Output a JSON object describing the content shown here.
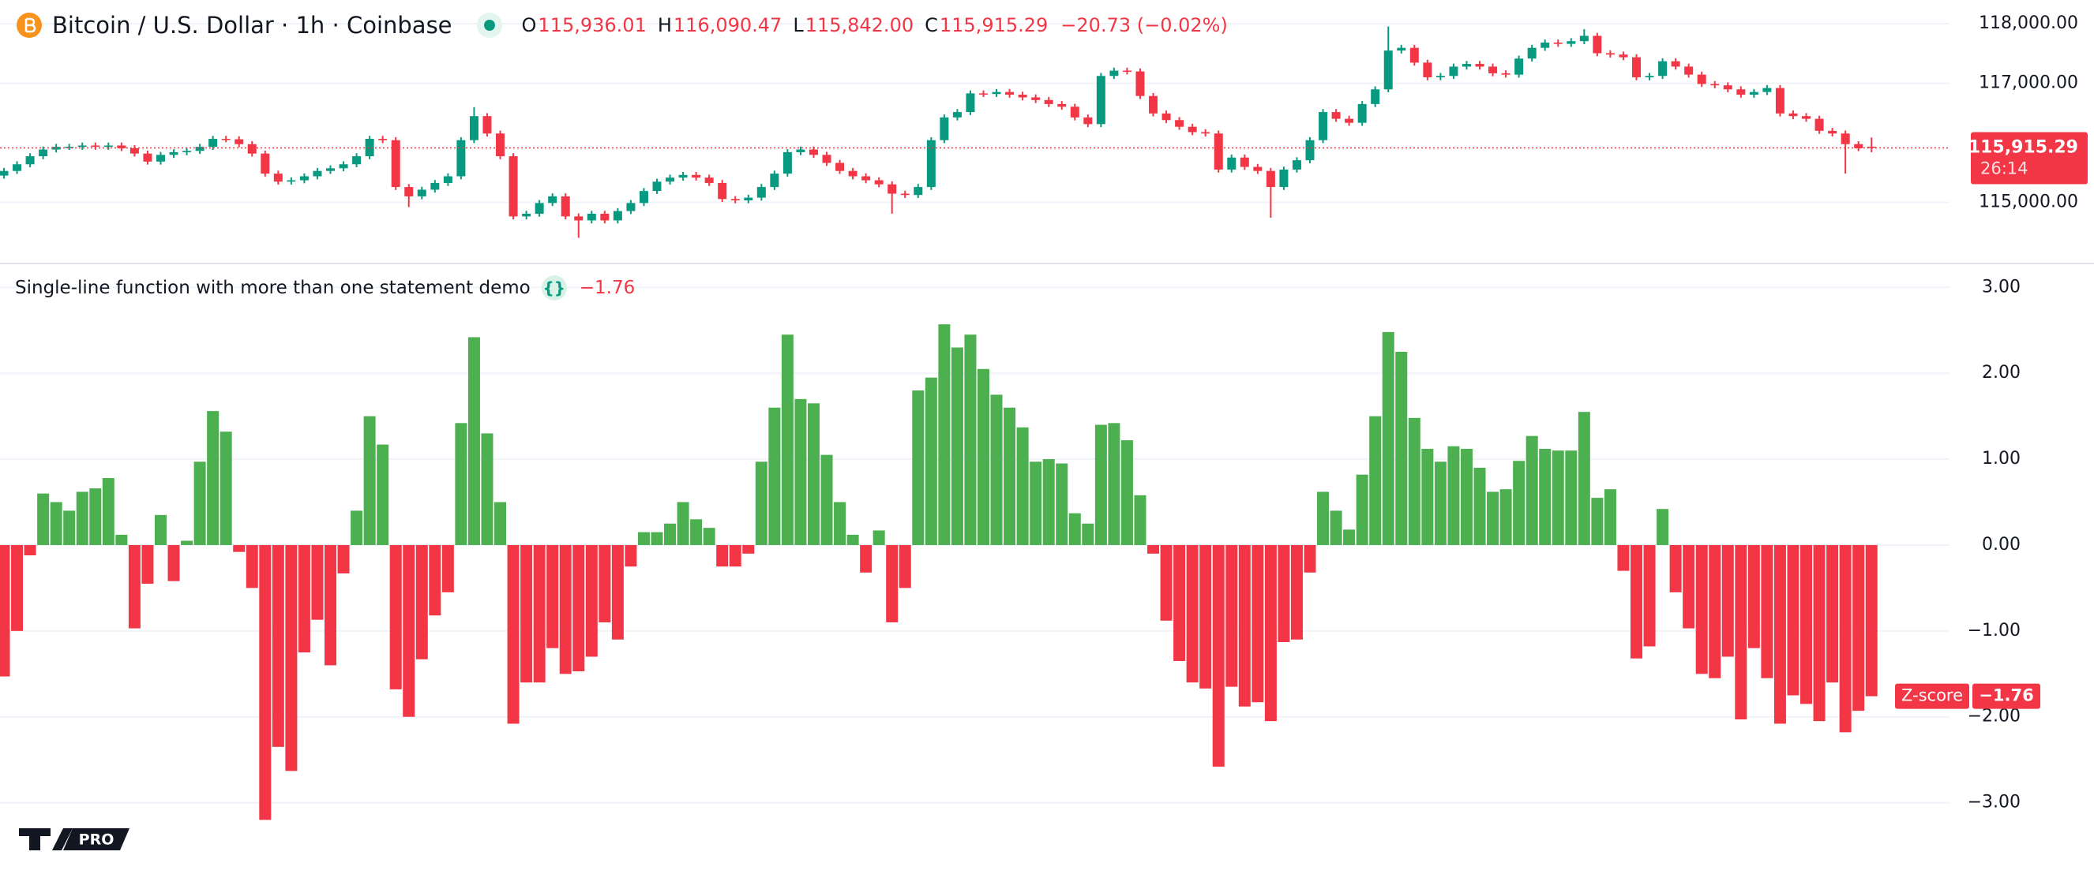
{
  "chart_data": [
    {
      "type": "candlestick",
      "title": "Bitcoin / U.S. Dollar · 1h · Coinbase",
      "ohlc_legend": [
        {
          "key": "O",
          "label": "115,936.01"
        },
        {
          "key": "H",
          "label": "116,090.47"
        },
        {
          "key": "L",
          "label": "115,842.00"
        },
        {
          "key": "C",
          "label": "115,915.29"
        }
      ],
      "change_label": "−20.73 (−0.02%)",
      "last_price_label": "115,915.29",
      "countdown": "26:14",
      "up_color": "#089981",
      "down_color": "#f23645",
      "ylim": [
        114000,
        118400
      ],
      "yticks": [
        {
          "value": 115000,
          "label": "115,000.00"
        },
        {
          "value": 117000,
          "label": "117,000.00"
        },
        {
          "value": 118000,
          "label": "118,000.00"
        }
      ],
      "grid": true,
      "open": [
        115450,
        115528,
        115640,
        115775,
        115888,
        115933,
        115933,
        115955,
        115933,
        115955,
        115910,
        115820,
        115685,
        115798,
        115843,
        115865,
        115933,
        116067,
        116060,
        115978,
        115820,
        115483,
        115348,
        115371,
        115438,
        115528,
        115573,
        115640,
        115775,
        116067,
        116045,
        115258,
        115101,
        115213,
        115326,
        115438,
        116045,
        116449,
        116157,
        115775,
        114764,
        114809,
        114989,
        115101,
        114764,
        114697,
        114809,
        114697,
        114854,
        114989,
        115191,
        115348,
        115416,
        115461,
        115416,
        115326,
        115056,
        115034,
        115079,
        115258,
        115483,
        115843,
        115888,
        115798,
        115663,
        115528,
        115438,
        115371,
        115303,
        115146,
        115124,
        115258,
        116045,
        116427,
        116517,
        116831,
        116820,
        116854,
        116809,
        116764,
        116719,
        116652,
        116607,
        116427,
        116315,
        117124,
        117213,
        117200,
        116787,
        116494,
        116382,
        116270,
        116180,
        116157,
        115551,
        115753,
        115596,
        115528,
        115258,
        115551,
        115708,
        116045,
        116517,
        116404,
        116337,
        116652,
        116899,
        117551,
        117596,
        117348,
        117101,
        117124,
        117281,
        117326,
        117281,
        117169,
        117146,
        117416,
        117596,
        117685,
        117663,
        117708,
        117798,
        117506,
        117483,
        117438,
        117101,
        117124,
        117371,
        117281,
        117146,
        116989,
        116966,
        116899,
        116809,
        116854,
        116921,
        116494,
        116449,
        116404,
        116202,
        116157,
        115978,
        115936.01
      ],
      "high": [
        115578,
        115690,
        115825,
        115938,
        115983,
        115983,
        116005,
        116005,
        116005,
        116005,
        115960,
        115870,
        115848,
        115893,
        115915,
        115983,
        116117,
        116117,
        116110,
        116028,
        115870,
        115533,
        115421,
        115488,
        115578,
        115623,
        115690,
        115825,
        116117,
        116117,
        116095,
        115308,
        115263,
        115376,
        115488,
        116095,
        116600,
        116499,
        116207,
        115825,
        114859,
        115039,
        115151,
        115151,
        114814,
        114859,
        114859,
        114904,
        115039,
        115241,
        115398,
        115466,
        115511,
        115511,
        115466,
        115376,
        115106,
        115129,
        115308,
        115533,
        115893,
        115938,
        115938,
        115848,
        115713,
        115578,
        115488,
        115421,
        115353,
        115196,
        115308,
        116095,
        116477,
        116567,
        116881,
        116881,
        116904,
        116904,
        116859,
        116814,
        116769,
        116702,
        116657,
        116477,
        117174,
        117263,
        117263,
        117250,
        116837,
        116544,
        116432,
        116320,
        116230,
        116207,
        115803,
        115803,
        115646,
        115578,
        115601,
        115758,
        116095,
        116567,
        116567,
        116454,
        116702,
        116949,
        117955,
        117646,
        117646,
        117398,
        117174,
        117331,
        117376,
        117376,
        117331,
        117219,
        117466,
        117646,
        117735,
        117735,
        117758,
        117910,
        117848,
        117556,
        117533,
        117488,
        117174,
        117421,
        117421,
        117331,
        117196,
        117039,
        117016,
        116949,
        116904,
        116971,
        116971,
        116544,
        116499,
        116454,
        116252,
        116207,
        116028,
        116090.47
      ],
      "low": [
        115400,
        115478,
        115590,
        115725,
        115838,
        115883,
        115883,
        115883,
        115883,
        115860,
        115770,
        115635,
        115635,
        115748,
        115793,
        115815,
        115883,
        116010,
        115928,
        115770,
        115433,
        115298,
        115298,
        115321,
        115388,
        115478,
        115523,
        115590,
        115725,
        115995,
        115208,
        114921,
        115051,
        115163,
        115276,
        115388,
        115995,
        116107,
        115725,
        114714,
        114714,
        114759,
        114939,
        114714,
        114404,
        114647,
        114647,
        114647,
        114804,
        114939,
        115141,
        115298,
        115366,
        115366,
        115276,
        115006,
        114984,
        114984,
        115029,
        115208,
        115433,
        115793,
        115748,
        115613,
        115478,
        115388,
        115321,
        115253,
        114810,
        115074,
        115074,
        115208,
        115995,
        116377,
        116467,
        116770,
        116770,
        116759,
        116714,
        116669,
        116602,
        116557,
        116377,
        116265,
        116265,
        117074,
        117150,
        116737,
        116444,
        116332,
        116220,
        116130,
        116107,
        115501,
        115501,
        115546,
        115478,
        114742,
        115208,
        115501,
        115658,
        115995,
        116354,
        116287,
        116287,
        116602,
        116849,
        117501,
        117298,
        117051,
        117051,
        117074,
        117231,
        117231,
        117119,
        117096,
        117096,
        117366,
        117546,
        117613,
        117613,
        117658,
        117456,
        117433,
        117388,
        117051,
        117051,
        117074,
        117231,
        117096,
        116939,
        116916,
        116849,
        116759,
        116759,
        116804,
        116444,
        116399,
        116354,
        116152,
        116107,
        115483,
        115860,
        115842.0
      ],
      "close": [
        115528,
        115640,
        115775,
        115888,
        115933,
        115933,
        115955,
        115933,
        115955,
        115910,
        115820,
        115685,
        115798,
        115843,
        115865,
        115933,
        116067,
        116060,
        115978,
        115820,
        115483,
        115348,
        115371,
        115438,
        115528,
        115573,
        115640,
        115775,
        116067,
        116045,
        115258,
        115101,
        115213,
        115326,
        115438,
        116045,
        116449,
        116157,
        115775,
        114764,
        114809,
        114989,
        115101,
        114764,
        114697,
        114809,
        114697,
        114854,
        114989,
        115191,
        115348,
        115416,
        115461,
        115416,
        115326,
        115056,
        115034,
        115079,
        115258,
        115483,
        115843,
        115888,
        115798,
        115663,
        115528,
        115438,
        115371,
        115303,
        115146,
        115124,
        115258,
        116045,
        116427,
        116517,
        116831,
        116820,
        116854,
        116809,
        116764,
        116719,
        116652,
        116607,
        116427,
        116315,
        117124,
        117213,
        117200,
        116787,
        116494,
        116382,
        116270,
        116180,
        116157,
        115551,
        115753,
        115596,
        115528,
        115258,
        115551,
        115708,
        116045,
        116517,
        116404,
        116337,
        116652,
        116899,
        117551,
        117596,
        117348,
        117101,
        117124,
        117281,
        117326,
        117281,
        117169,
        117146,
        117416,
        117596,
        117685,
        117663,
        117708,
        117798,
        117506,
        117483,
        117438,
        117101,
        117124,
        117371,
        117281,
        117146,
        116989,
        116966,
        116899,
        116809,
        116854,
        116921,
        116494,
        116449,
        116404,
        116202,
        116157,
        115978,
        115910,
        115915.29
      ]
    },
    {
      "type": "bar",
      "title": "Single-line function with more than one statement demo",
      "series_name": "Z-score",
      "last_value_label": "−1.76",
      "positive_color": "#4caf50",
      "negative_color": "#f23645",
      "ylim": [
        -3.83,
        3.26
      ],
      "yticks": [
        {
          "value": 3,
          "label": "3.00"
        },
        {
          "value": 2,
          "label": "2.00"
        },
        {
          "value": 1,
          "label": "1.00"
        },
        {
          "value": 0,
          "label": "0.00"
        },
        {
          "value": -1,
          "label": "−1.00"
        },
        {
          "value": -2,
          "label": "−2.00"
        },
        {
          "value": -3,
          "label": "−3.00"
        }
      ],
      "grid": true,
      "values": [
        -1.53,
        -1.0,
        -0.12,
        0.6,
        0.5,
        0.4,
        0.62,
        0.66,
        0.78,
        0.12,
        -0.97,
        -0.45,
        0.35,
        -0.42,
        0.05,
        0.97,
        1.56,
        1.32,
        -0.08,
        -0.5,
        -3.2,
        -2.35,
        -2.63,
        -1.25,
        -0.87,
        -1.4,
        -0.33,
        0.4,
        1.5,
        1.17,
        -1.68,
        -2.0,
        -1.33,
        -0.82,
        -0.55,
        1.42,
        2.42,
        1.3,
        0.5,
        -2.08,
        -1.6,
        -1.6,
        -1.2,
        -1.5,
        -1.47,
        -1.3,
        -0.9,
        -1.1,
        -0.25,
        0.15,
        0.15,
        0.25,
        0.5,
        0.3,
        0.2,
        -0.25,
        -0.25,
        -0.1,
        0.97,
        1.6,
        2.45,
        1.7,
        1.65,
        1.05,
        0.5,
        0.12,
        -0.32,
        0.17,
        -0.9,
        -0.5,
        1.8,
        1.95,
        2.57,
        2.3,
        2.45,
        2.05,
        1.75,
        1.6,
        1.37,
        0.97,
        1.0,
        0.95,
        0.37,
        0.25,
        1.4,
        1.42,
        1.22,
        0.58,
        -0.1,
        -0.88,
        -1.35,
        -1.6,
        -1.67,
        -2.58,
        -1.65,
        -1.88,
        -1.83,
        -2.05,
        -1.13,
        -1.1,
        -0.32,
        0.62,
        0.4,
        0.18,
        0.82,
        1.5,
        2.48,
        2.25,
        1.48,
        1.12,
        0.97,
        1.15,
        1.12,
        0.9,
        0.62,
        0.65,
        0.98,
        1.27,
        1.12,
        1.1,
        1.1,
        1.55,
        0.55,
        0.65,
        -0.3,
        -1.32,
        -1.18,
        0.42,
        -0.55,
        -0.97,
        -1.5,
        -1.55,
        -1.3,
        -2.03,
        -1.2,
        -1.55,
        -2.08,
        -1.75,
        -1.85,
        -2.05,
        -1.6,
        -2.18,
        -1.93,
        -1.76
      ]
    }
  ],
  "watermark": "PRO"
}
